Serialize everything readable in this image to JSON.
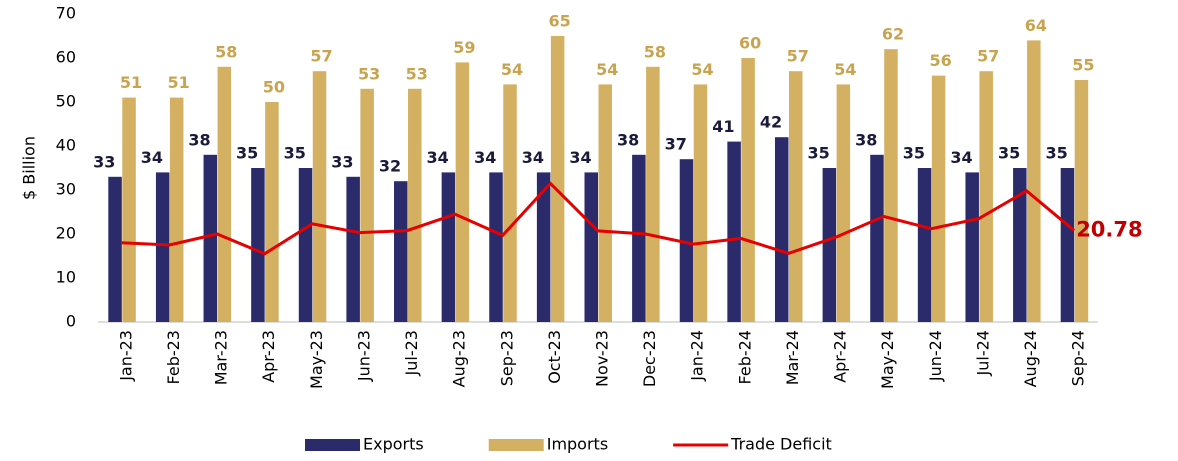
{
  "chart_data": {
    "type": "bar_line",
    "y_axis_label": "$ Billion",
    "categories": [
      "Jan-23",
      "Feb-23",
      "Mar-23",
      "Apr-23",
      "May-23",
      "Jun-23",
      "Jul-23",
      "Aug-23",
      "Sep-23",
      "Oct-23",
      "Nov-23",
      "Dec-23",
      "Jan-24",
      "Feb-24",
      "Mar-24",
      "Apr-24",
      "May-24",
      "Jun-24",
      "Jul-24",
      "Aug-24",
      "Sep-24"
    ],
    "series": [
      {
        "name": "Exports",
        "color": "#2b2a6b",
        "label_color": "#1a1a3a",
        "values": [
          33,
          34,
          38,
          35,
          35,
          33,
          32,
          34,
          34,
          34,
          34,
          38,
          37,
          41,
          42,
          35,
          38,
          35,
          34,
          35,
          35
        ]
      },
      {
        "name": "Imports",
        "color": "#d4b062",
        "label_color": "#c9a450",
        "values": [
          51,
          51,
          58,
          50,
          57,
          53,
          53,
          59,
          54,
          65,
          54,
          58,
          54,
          60,
          57,
          54,
          62,
          56,
          57,
          64,
          55
        ]
      },
      {
        "name": "Trade Deficit",
        "type": "line",
        "color": "#e60000",
        "values": [
          18,
          17.5,
          20,
          15.5,
          22.3,
          20.3,
          20.8,
          24.5,
          19.7,
          31.5,
          20.7,
          20,
          17.7,
          19,
          15.6,
          19.3,
          24,
          21.2,
          23.5,
          29.8,
          20.78
        ]
      }
    ],
    "ylim": [
      0,
      70
    ],
    "yticks": [
      0,
      10,
      20,
      30,
      40,
      50,
      60,
      70
    ],
    "grid": false,
    "legend": "bottom"
  }
}
